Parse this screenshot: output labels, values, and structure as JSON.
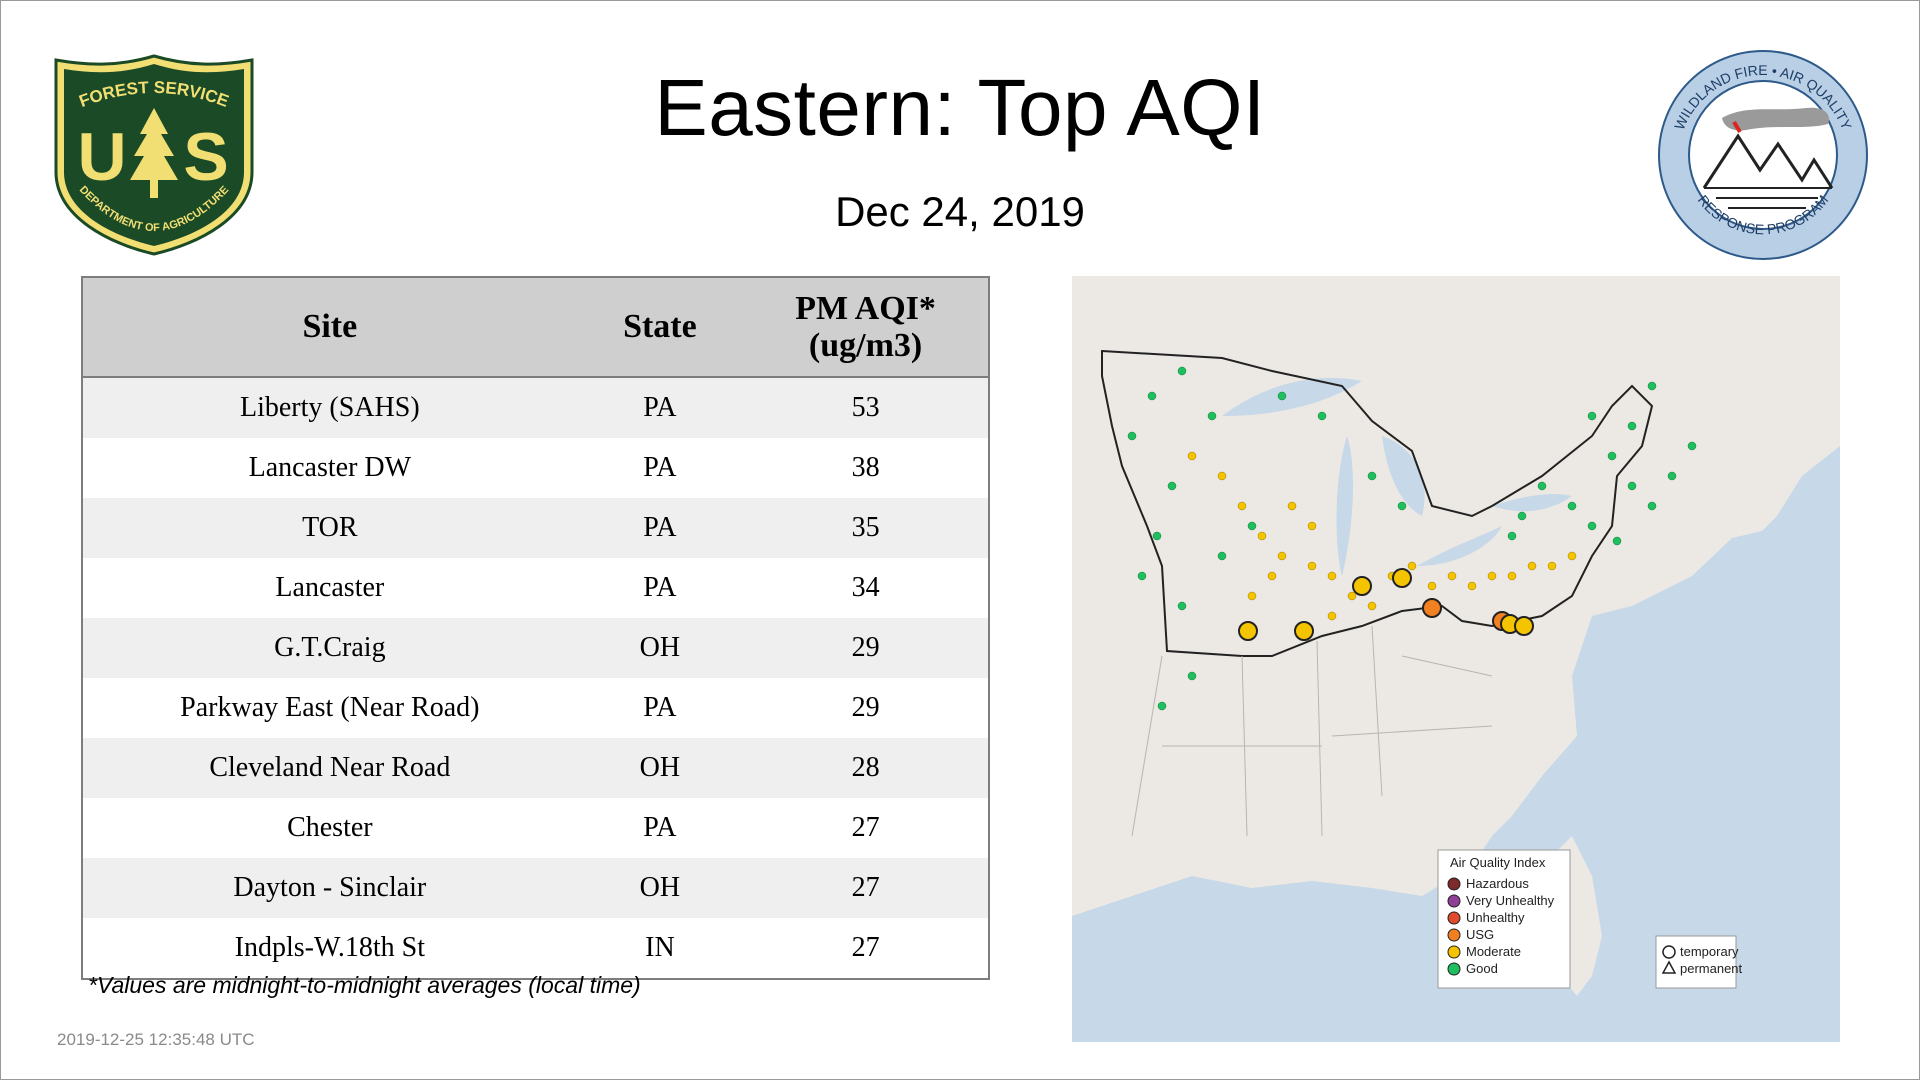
{
  "page": {
    "title": "Eastern: Top AQI",
    "date": "Dec 24, 2019",
    "footnote": "*Values are midnight-to-midnight averages (local time)",
    "timestamp": "2019-12-25 12:35:48 UTC"
  },
  "logos": {
    "usfs": {
      "top": "FOREST SERVICE",
      "bottom": "DEPARTMENT OF AGRICULTURE",
      "u": "U",
      "s": "S"
    },
    "wildfire": {
      "ring_top": "WILDLAND FIRE • AIR QUALITY",
      "ring_bottom": "RESPONSE PROGRAM"
    }
  },
  "table": {
    "headers": {
      "site": "Site",
      "state": "State",
      "aqi_line1": "PM AQI*",
      "aqi_line2": "(ug/m3)"
    },
    "rows": [
      {
        "site": "Liberty (SAHS)",
        "state": "PA",
        "aqi": "53"
      },
      {
        "site": "Lancaster DW",
        "state": "PA",
        "aqi": "38"
      },
      {
        "site": "TOR",
        "state": "PA",
        "aqi": "35"
      },
      {
        "site": "Lancaster",
        "state": "PA",
        "aqi": "34"
      },
      {
        "site": "G.T.Craig",
        "state": "OH",
        "aqi": "29"
      },
      {
        "site": "Parkway East (Near Road)",
        "state": "PA",
        "aqi": "29"
      },
      {
        "site": "Cleveland Near Road",
        "state": "OH",
        "aqi": "28"
      },
      {
        "site": "Chester",
        "state": "PA",
        "aqi": "27"
      },
      {
        "site": "Dayton - Sinclair",
        "state": "OH",
        "aqi": "27"
      },
      {
        "site": "Indpls-W.18th St",
        "state": "IN",
        "aqi": "27"
      }
    ]
  },
  "map_legend": {
    "title": "Air Quality Index",
    "categories": [
      {
        "label": "Hazardous",
        "color": "#7e2a2a"
      },
      {
        "label": "Very Unhealthy",
        "color": "#8f3f97"
      },
      {
        "label": "Unhealthy",
        "color": "#e04a2e"
      },
      {
        "label": "USG",
        "color": "#f08020"
      },
      {
        "label": "Moderate",
        "color": "#f5c400"
      },
      {
        "label": "Good",
        "color": "#1fbf5f"
      }
    ],
    "types": [
      {
        "label": "temporary",
        "icon": "circle-icon"
      },
      {
        "label": "permanent",
        "icon": "triangle-icon"
      }
    ]
  },
  "colors": {
    "header_bg": "#cfcfcf",
    "row_alt_bg": "#efefef",
    "water": "#c7d8e8",
    "land": "#ece9e4",
    "usfs_green": "#1b4a26",
    "usfs_gold": "#f2df73"
  }
}
